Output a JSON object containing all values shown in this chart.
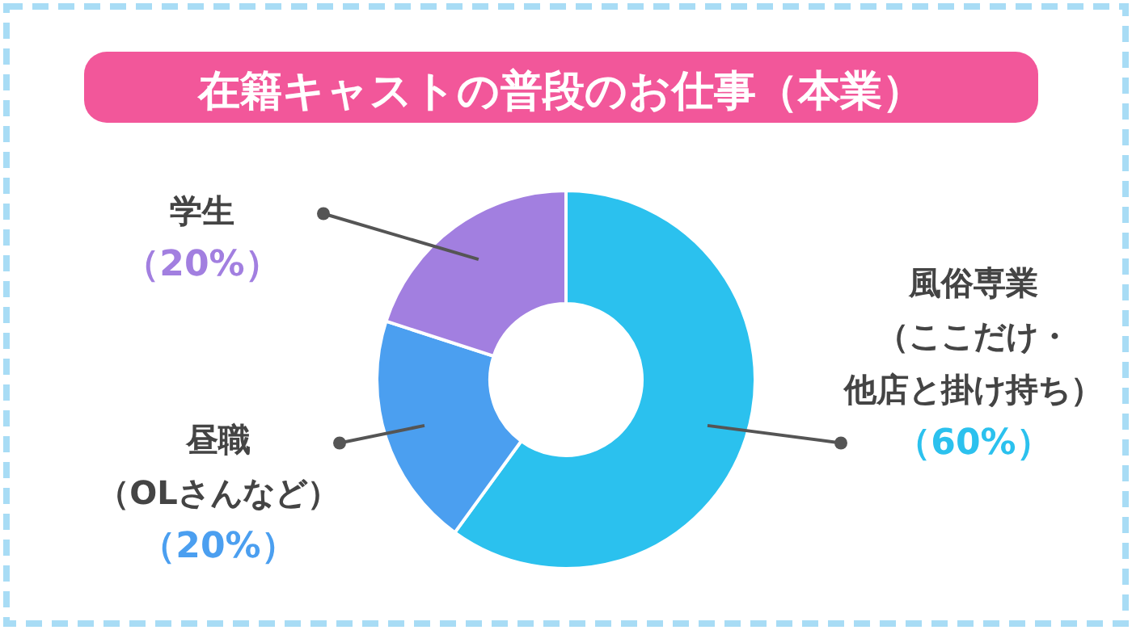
{
  "chart_data": {
    "type": "donut",
    "title": "在籍キャストの普段のお仕事（本業）",
    "categories": [
      "風俗専業（ここだけ・他店と掛け持ち）",
      "昼職（OLさんなど）",
      "学生"
    ],
    "values": [
      60,
      20,
      20
    ],
    "colors": [
      "#2bc1ee",
      "#4b9ff0",
      "#a27fe0"
    ],
    "value_labels": [
      "（60%）",
      "（20%）",
      "（20%）"
    ]
  }
}
